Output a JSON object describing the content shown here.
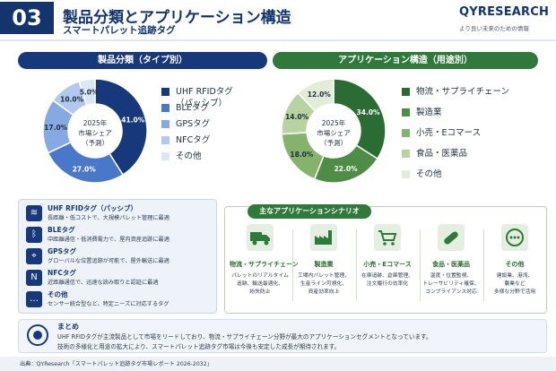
{
  "header": {
    "number": "03",
    "title": "製品分類とアプリケーション構造",
    "subtitle": "スマートパレット追跡タグ",
    "brand_name": "QYRESEARCH",
    "brand_tagline": "より良い未来のための情報"
  },
  "left_chart": {
    "heading": "製品分類（タイプ別）",
    "center_line1": "2025年",
    "center_line2": "市場シェア",
    "center_line3": "（予測）"
  },
  "right_chart": {
    "heading": "アプリケーション構造（用途別）",
    "center_line1": "2025年",
    "center_line2": "市場シェア",
    "center_line3": "（予測）"
  },
  "chart_data": [
    {
      "type": "pie",
      "title": "製品分類（タイプ別）",
      "donut": true,
      "categories": [
        "UHF RFIDタグ（パッシブ）",
        "BLEタグ",
        "GPSタグ",
        "NFCタグ",
        "その他"
      ],
      "values": [
        41.0,
        27.0,
        17.0,
        10.0,
        5.0
      ],
      "value_labels": [
        "41.0%",
        "27.0%",
        "17.0%",
        "10.0%",
        "5.0%"
      ],
      "colors": [
        "#17387a",
        "#4a78c8",
        "#86a9e2",
        "#b2c8ee",
        "#dbe6f7"
      ],
      "legend_position": "right"
    },
    {
      "type": "pie",
      "title": "アプリケーション構造（用途別）",
      "donut": true,
      "categories": [
        "物流・サプライチェーン",
        "製造業",
        "小売・Eコマース",
        "食品・医薬品",
        "その他"
      ],
      "values": [
        34.0,
        22.0,
        18.0,
        14.0,
        12.0
      ],
      "value_labels": [
        "34.0%",
        "22.0%",
        "18.0%",
        "14.0%",
        "12.0%"
      ],
      "colors": [
        "#2b6b34",
        "#4f8c45",
        "#86b36c",
        "#b8d2a0",
        "#e2ecd8"
      ],
      "legend_position": "right"
    }
  ],
  "features": [
    {
      "icon": "rfid-icon",
      "glyph": "≋",
      "title": "UHF RFIDタグ（パッシブ）",
      "desc": "長距離・低コストで、大規模パレット管理に最適"
    },
    {
      "icon": "bluetooth-icon",
      "glyph": "ᛒ",
      "title": "BLEタグ",
      "desc": "中距離通信・低消費電力で、屋内資産追跡に最適"
    },
    {
      "icon": "location-pin-icon",
      "glyph": "⌖",
      "title": "GPSタグ",
      "desc": "グローバルな位置追跡が可能で、屋外輸送に最適"
    },
    {
      "icon": "nfc-icon",
      "glyph": "N",
      "title": "NFCタグ",
      "desc": "近距離通信で、迅速な読み取りと認証に最適"
    },
    {
      "icon": "more-icon",
      "glyph": "…",
      "title": "その他",
      "desc": "センサー統合型など、特定ニーズに対応するタグ"
    }
  ],
  "scenarios": {
    "heading": "主なアプリケーションシナリオ",
    "items": [
      {
        "icon": "truck-icon",
        "title": "物流・サプライチェーン",
        "line1": "パレットのリアルタイム",
        "line2": "追跡、輸送最適化、",
        "line3": "紛失防止"
      },
      {
        "icon": "factory-icon",
        "title": "製造業",
        "line1": "工場内パレット管理、",
        "line2": "生産ライン可視化、",
        "line3": "資産効率向上"
      },
      {
        "icon": "cart-icon",
        "title": "小売・Eコマース",
        "line1": "在庫追跡、倉庫管理、",
        "line2": "注文履行の効率化",
        "line3": ""
      },
      {
        "icon": "capsule-icon",
        "title": "食品・医薬品",
        "line1": "温度・位置監視、",
        "line2": "トレーサビリティ確保、",
        "line3": "コンプライアンス対応"
      },
      {
        "icon": "more-circle-icon",
        "title": "その他",
        "line1": "建設業、港湾、",
        "line2": "農業など",
        "line3": "多様な分野で活用"
      }
    ]
  },
  "summary": {
    "heading": "まとめ",
    "line1": "UHF RFIDタグが主流製品として市場をリードしており、物流・サプライチェーン分野が最大のアプリケーションセグメントとなっています。",
    "line2": "技術の多様化と用途の拡大により、スマートパレット追跡タグ市場は今後も安定した成長が期待されます。"
  },
  "footer": {
    "source": "出典：QYResearch「スマートパレット追跡タグ市場レポート 2026-2032」"
  }
}
